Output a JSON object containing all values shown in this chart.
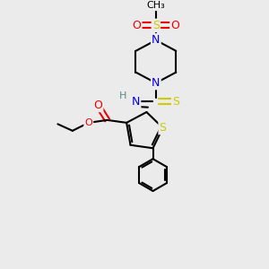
{
  "bg_color": "#ebebeb",
  "atom_colors": {
    "C": "#000000",
    "N": "#0000ee",
    "O": "#ee0000",
    "S": "#cccc00",
    "H": "#558888"
  },
  "bond_color": "#000000",
  "bond_width": 1.5
}
